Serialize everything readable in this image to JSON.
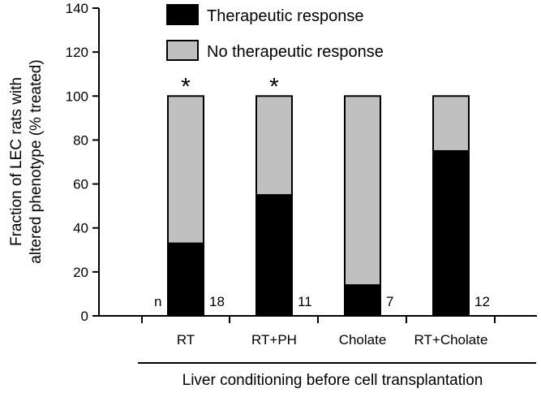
{
  "chart_data": {
    "type": "bar",
    "stacked": true,
    "categories": [
      "RT",
      "RT+PH",
      "Cholate",
      "RT+Cholate"
    ],
    "series": [
      {
        "name": "Therapeutic response",
        "values": [
          33,
          55,
          14,
          75
        ],
        "color": "#000000"
      },
      {
        "name": "No therapeutic response",
        "values": [
          67,
          45,
          86,
          25
        ],
        "color": "#c0c0c0"
      }
    ],
    "n_prefix": "n",
    "n_values": [
      "18",
      "11",
      "7",
      "12"
    ],
    "significance": [
      "*",
      "*",
      "",
      ""
    ],
    "ylabel_line1": "Fraction of LEC rats with",
    "ylabel_line2": "altered phenotype (% treated)",
    "xlabel": "Liver conditioning before cell transplantation",
    "ylim": [
      0,
      140
    ],
    "yticks": [
      "0",
      "20",
      "40",
      "60",
      "80",
      "100",
      "120",
      "140"
    ],
    "legend_position": "top-right",
    "grid": false
  }
}
